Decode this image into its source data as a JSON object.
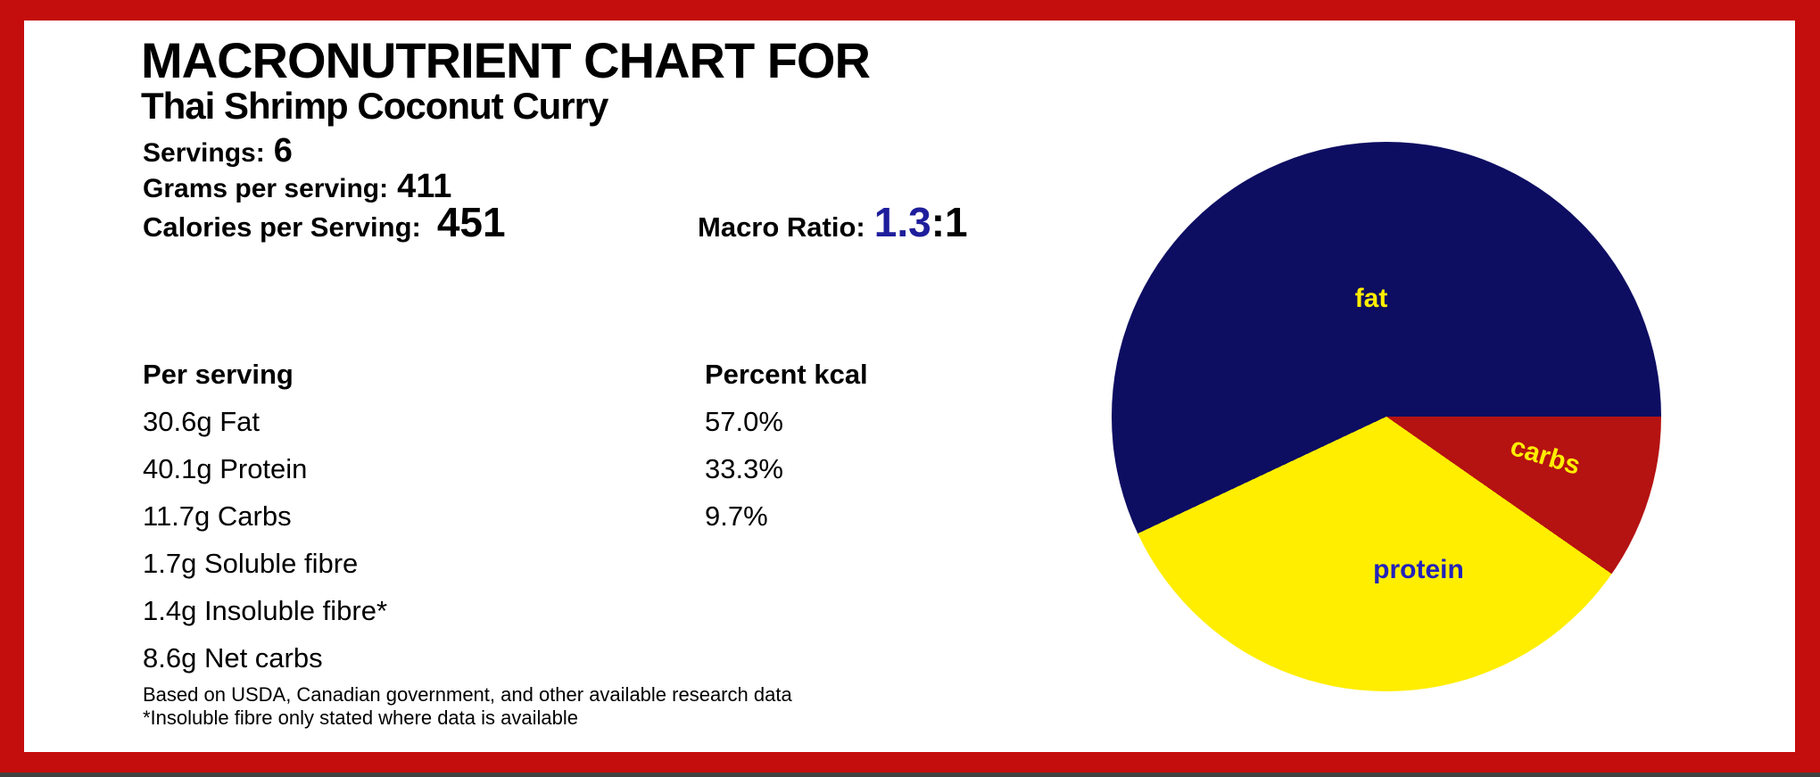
{
  "header": {
    "title": "MACRONUTRIENT CHART FOR",
    "recipe_name": "Thai Shrimp Coconut Curry"
  },
  "summary": {
    "servings_label": "Servings:",
    "servings_value": "6",
    "grams_label": "Grams per serving:",
    "grams_value": "411",
    "calories_label": "Calories per Serving:",
    "calories_value": "451",
    "macro_ratio_label": "Macro Ratio:",
    "macro_ratio_value": "1.3",
    "macro_ratio_suffix": ":1"
  },
  "table": {
    "col1_header": "Per serving",
    "col2_header": "Percent kcal",
    "rows": [
      {
        "amount": "30.6g Fat",
        "percent": "57.0%"
      },
      {
        "amount": "40.1g Protein",
        "percent": "33.3%"
      },
      {
        "amount": "11.7g Carbs",
        "percent": "9.7%"
      },
      {
        "amount": "1.7g Soluble fibre",
        "percent": ""
      },
      {
        "amount": "1.4g Insoluble fibre*",
        "percent": ""
      },
      {
        "amount": "8.6g Net carbs",
        "percent": ""
      }
    ]
  },
  "footnotes": [
    "Based on USDA, Canadian government, and other available research data",
    "*Insoluble fibre only stated where data is available"
  ],
  "chart_data": {
    "type": "pie",
    "labels": [
      "fat",
      "protein",
      "carbs"
    ],
    "values": [
      57.0,
      33.3,
      9.7
    ],
    "colors": [
      "#0d0d62",
      "#ffee00",
      "#b51212"
    ],
    "label_text_colors": [
      "#ffee00",
      "#2222bb",
      "#ffee00"
    ],
    "start_angle_deg": 0,
    "direction": "counterclockwise",
    "labels_inside": true,
    "legend": "none",
    "title": ""
  },
  "colors": {
    "border_red": "#c40d0d",
    "ratio_blue": "#1e1e9c",
    "text_black": "#000000",
    "background": "#ffffff",
    "bottom_strip": "#414141"
  }
}
